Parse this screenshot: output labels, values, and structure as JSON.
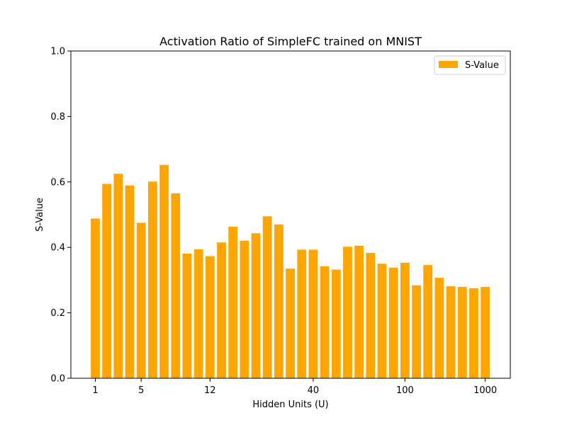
{
  "chart_data": {
    "type": "bar",
    "title": "Activation Ratio of SimpleFC trained on MNIST",
    "xlabel": "Hidden Units (U)",
    "ylabel": "S-Value",
    "ylim": [
      0,
      1.0
    ],
    "yticks": [
      "0.0",
      "0.2",
      "0.4",
      "0.6",
      "0.8",
      "1.0"
    ],
    "x_tick_labels": [
      {
        "label": "1",
        "at_bar": 0
      },
      {
        "label": "5",
        "at_bar": 4
      },
      {
        "label": "12",
        "at_bar": 10
      },
      {
        "label": "40",
        "at_bar": 19
      },
      {
        "label": "100",
        "at_bar": 27
      },
      {
        "label": "1000",
        "at_bar": 34
      }
    ],
    "bar_color": "#ffa500",
    "legend": {
      "placement": "upper-right",
      "entries": [
        "S-Value"
      ]
    },
    "grid": false,
    "series": [
      {
        "name": "S-Value",
        "values": [
          0.488,
          0.594,
          0.625,
          0.589,
          0.475,
          0.601,
          0.652,
          0.565,
          0.381,
          0.394,
          0.373,
          0.415,
          0.463,
          0.42,
          0.443,
          0.495,
          0.47,
          0.335,
          0.393,
          0.393,
          0.342,
          0.332,
          0.402,
          0.405,
          0.383,
          0.35,
          0.338,
          0.353,
          0.284,
          0.346,
          0.307,
          0.281,
          0.279,
          0.275,
          0.279
        ]
      }
    ]
  }
}
